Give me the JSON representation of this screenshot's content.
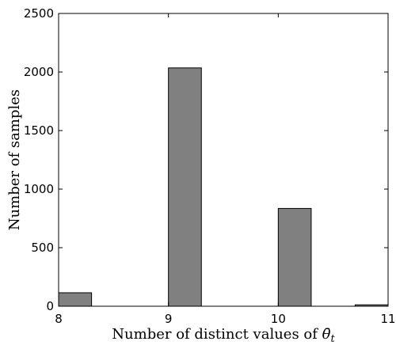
{
  "chart_data": {
    "type": "bar",
    "title": "",
    "xlabel_prefix": "Number of distinct values of ",
    "xlabel_symbol": "θ̄",
    "xlabel_subscript": "t",
    "ylabel": "Number of samples",
    "xlim": [
      8,
      11
    ],
    "ylim": [
      0,
      2500
    ],
    "xticks": [
      "8",
      "9",
      "10",
      "11"
    ],
    "yticks": [
      "0",
      "500",
      "1000",
      "1500",
      "2000",
      "2500"
    ],
    "bar_width": 0.3,
    "bars": [
      {
        "x_start": 8.0,
        "value": 115
      },
      {
        "x_start": 8.3,
        "value": 0
      },
      {
        "x_start": 8.6,
        "value": 0
      },
      {
        "x_start": 9.0,
        "value": 2035
      },
      {
        "x_start": 9.3,
        "value": 0
      },
      {
        "x_start": 9.6,
        "value": 0
      },
      {
        "x_start": 10.0,
        "value": 835
      },
      {
        "x_start": 10.3,
        "value": 0
      },
      {
        "x_start": 10.6,
        "value": 0
      },
      {
        "x_start": 10.7,
        "value": 12
      }
    ],
    "bar_color": "#808080",
    "edge_color": "#000000",
    "grid": false,
    "legend": false
  }
}
